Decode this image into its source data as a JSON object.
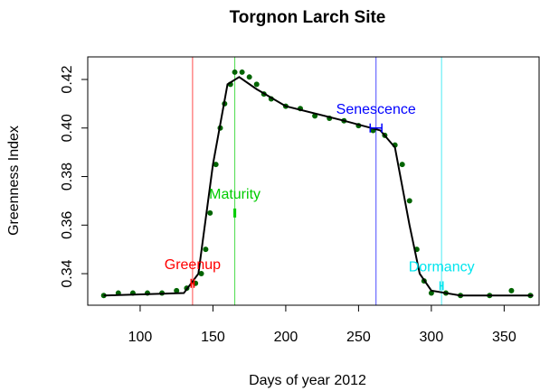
{
  "chart_data": {
    "type": "scatter",
    "title": "Torgnon Larch Site",
    "x_label": "Days of year 2012",
    "y_label": "Greenness Index",
    "xlim": [
      64,
      374
    ],
    "ylim": [
      0.327,
      0.4293
    ],
    "xticks": [
      100,
      150,
      200,
      250,
      300,
      350
    ],
    "yticks": [
      0.34,
      0.36,
      0.38,
      {
        "value": 0.4,
        "label": "0.40"
      },
      0.42
    ],
    "observed": {
      "color": "#006400",
      "x": [
        75,
        85,
        95,
        105,
        115,
        125,
        132,
        138,
        142,
        145,
        148,
        152,
        155,
        158,
        162,
        165,
        170,
        175,
        180,
        185,
        190,
        200,
        210,
        220,
        230,
        240,
        250,
        260,
        268,
        275,
        280,
        285,
        290,
        295,
        300,
        310,
        320,
        340,
        355,
        368
      ],
      "values": [
        0.331,
        0.332,
        0.332,
        0.332,
        0.332,
        0.333,
        0.334,
        0.336,
        0.34,
        0.35,
        0.365,
        0.385,
        0.4,
        0.41,
        0.418,
        0.423,
        0.423,
        0.421,
        0.418,
        0.414,
        0.412,
        0.409,
        0.408,
        0.405,
        0.404,
        0.403,
        0.401,
        0.399,
        0.397,
        0.393,
        0.385,
        0.37,
        0.35,
        0.337,
        0.332,
        0.332,
        0.331,
        0.331,
        0.333,
        0.331
      ]
    },
    "fit": {
      "color": "#000000",
      "x": [
        75,
        130,
        140,
        150,
        160,
        168,
        180,
        200,
        240,
        265,
        275,
        285,
        292,
        300,
        320,
        370
      ],
      "values": [
        0.331,
        0.332,
        0.34,
        0.385,
        0.418,
        0.421,
        0.416,
        0.409,
        0.403,
        0.399,
        0.392,
        0.36,
        0.34,
        0.333,
        0.331,
        0.331
      ]
    },
    "transitions": [
      {
        "label": "Greenup",
        "day": 136,
        "error": 1,
        "y": 0.336,
        "color": "#ff0000"
      },
      {
        "label": "Maturity",
        "day": 165,
        "error": 0.5,
        "y": 0.365,
        "color": "#00cc00"
      },
      {
        "label": "Senescence",
        "day": 262,
        "error": 4,
        "y": 0.4,
        "color": "#0000ff"
      },
      {
        "label": "Dormancy",
        "day": 307,
        "error": 1,
        "y": 0.335,
        "color": "#00e5ee"
      }
    ]
  }
}
